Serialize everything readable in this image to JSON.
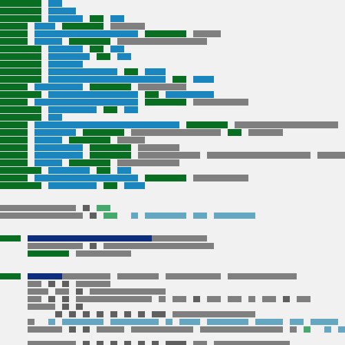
{
  "page": {
    "title": "",
    "colors": {
      "background": "#f1f1f1",
      "green": "#0a6e22",
      "blue": "#1b86bd",
      "gray": "#7f7f7f",
      "dark_gray": "#5f5f5f",
      "light_green": "#45a86c",
      "light_blue": "#65a6c0",
      "navy": "#0d2e7f"
    },
    "icons": []
  }
}
